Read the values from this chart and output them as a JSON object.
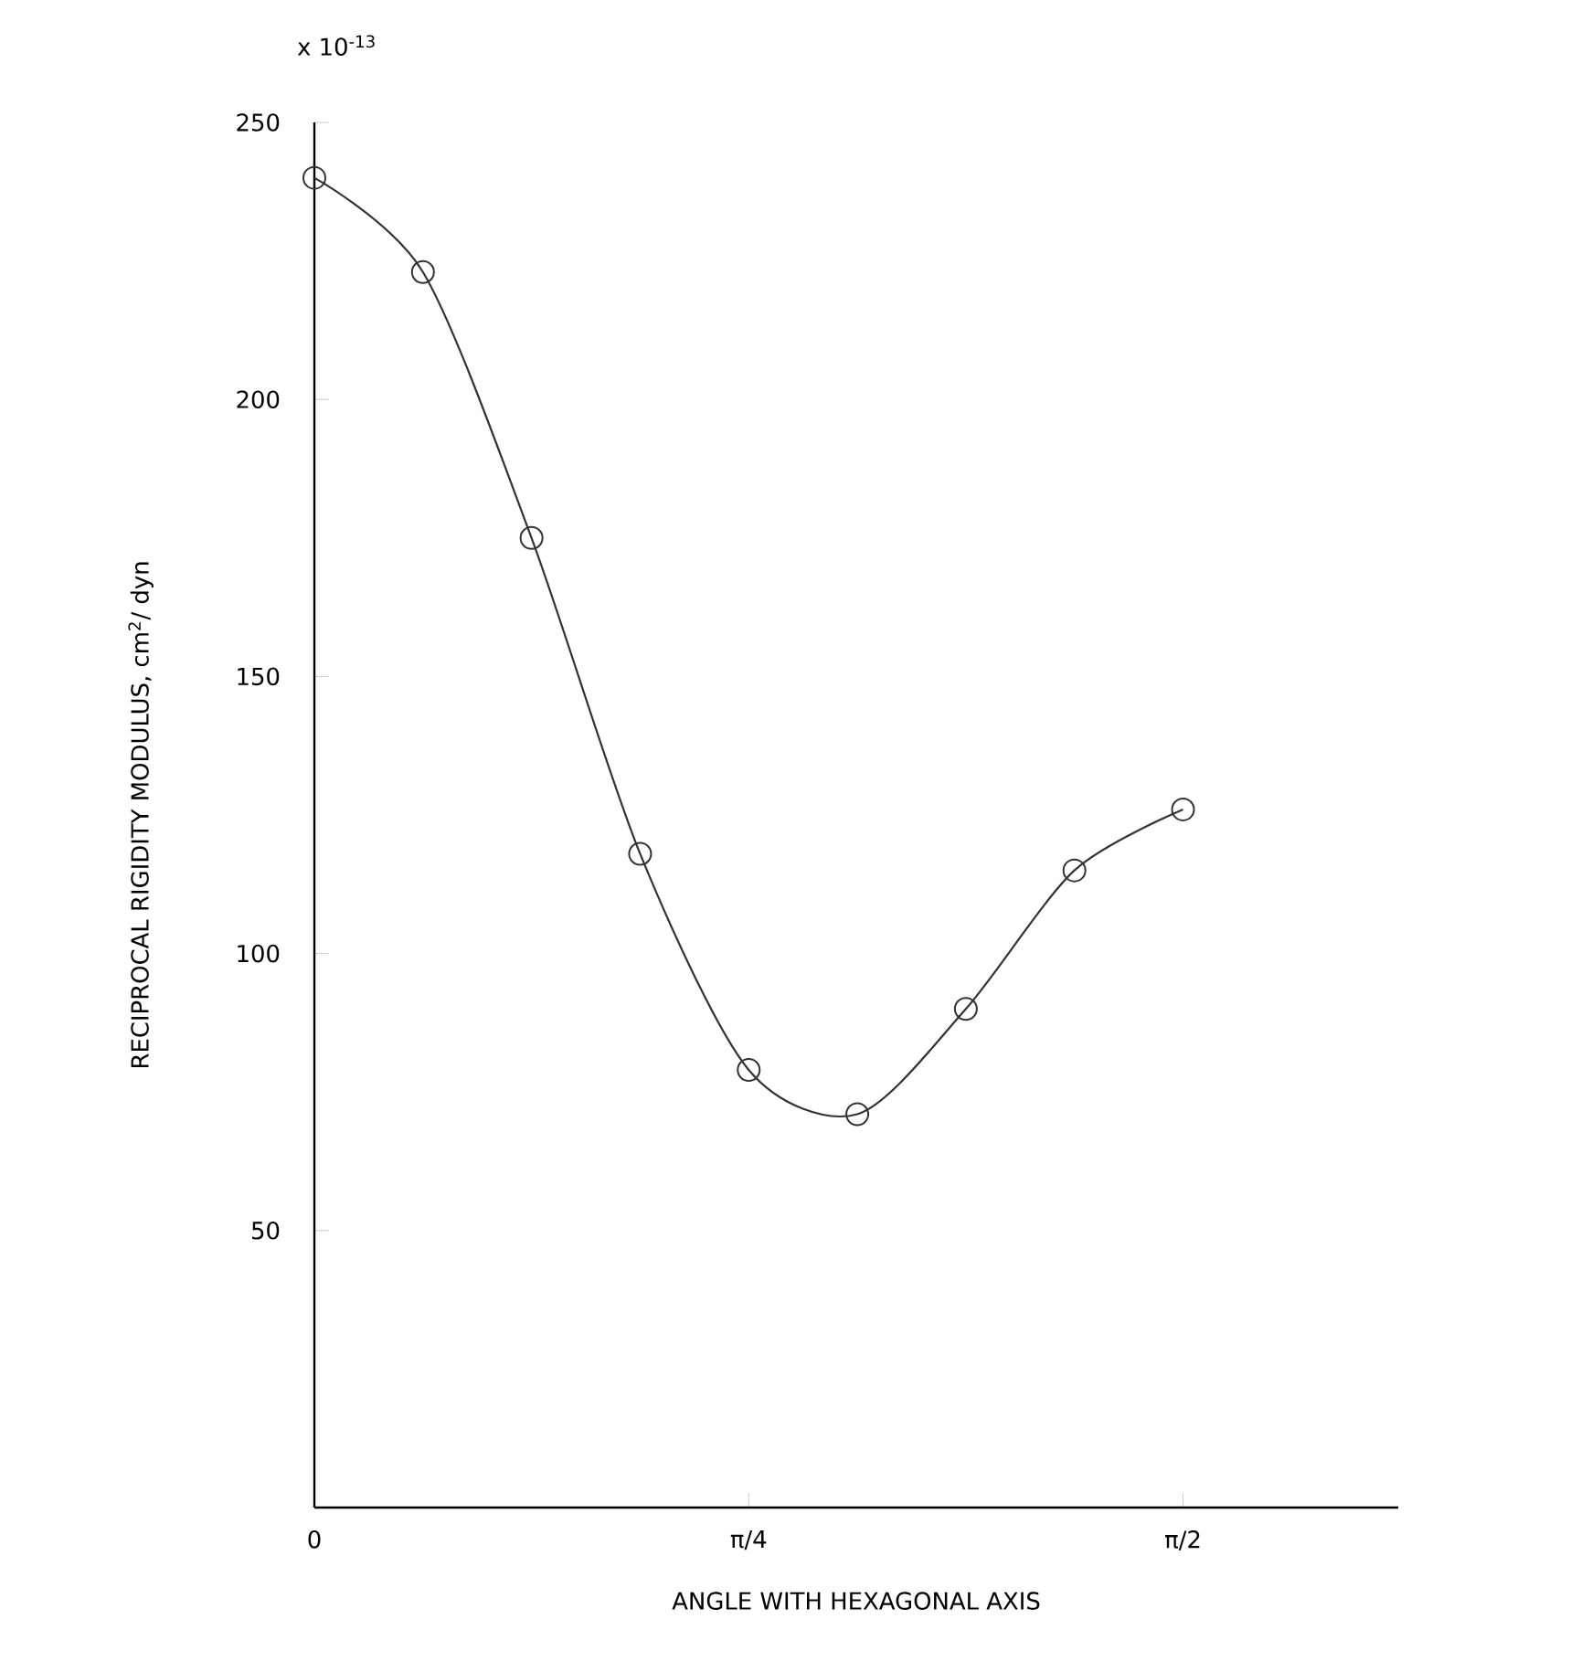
{
  "chart_data": {
    "type": "line",
    "xlabel": "ANGLE WITH HEXAGONAL AXIS",
    "ylabel": "RECIPROCAL RIGIDITY MODULUS,  cm$^{2}$/ dyn",
    "annotations": [
      "x 10$^{-13}$"
    ],
    "x": [
      0,
      0.19635,
      0.3927,
      0.58905,
      0.7854,
      0.98175,
      1.1781,
      1.37445,
      1.5708
    ],
    "series": [
      {
        "color": "#333333",
        "values": [
          240,
          223,
          175,
          118,
          79,
          71,
          90,
          115,
          126
        ]
      }
    ],
    "marker": "circle",
    "line_style": "solid",
    "xlim": [
      0,
      1.96
    ],
    "ylim": [
      0,
      250
    ],
    "xticks": [
      {
        "value": 0,
        "label": "0"
      },
      {
        "value": 0.7854,
        "label": "π/4"
      },
      {
        "value": 1.5708,
        "label": "π/2"
      }
    ],
    "yticks": [
      {
        "value": 50,
        "label": "50"
      },
      {
        "value": 100,
        "label": "100"
      },
      {
        "value": 150,
        "label": "150"
      },
      {
        "value": 200,
        "label": "200"
      },
      {
        "value": 250,
        "label": "250"
      }
    ]
  }
}
